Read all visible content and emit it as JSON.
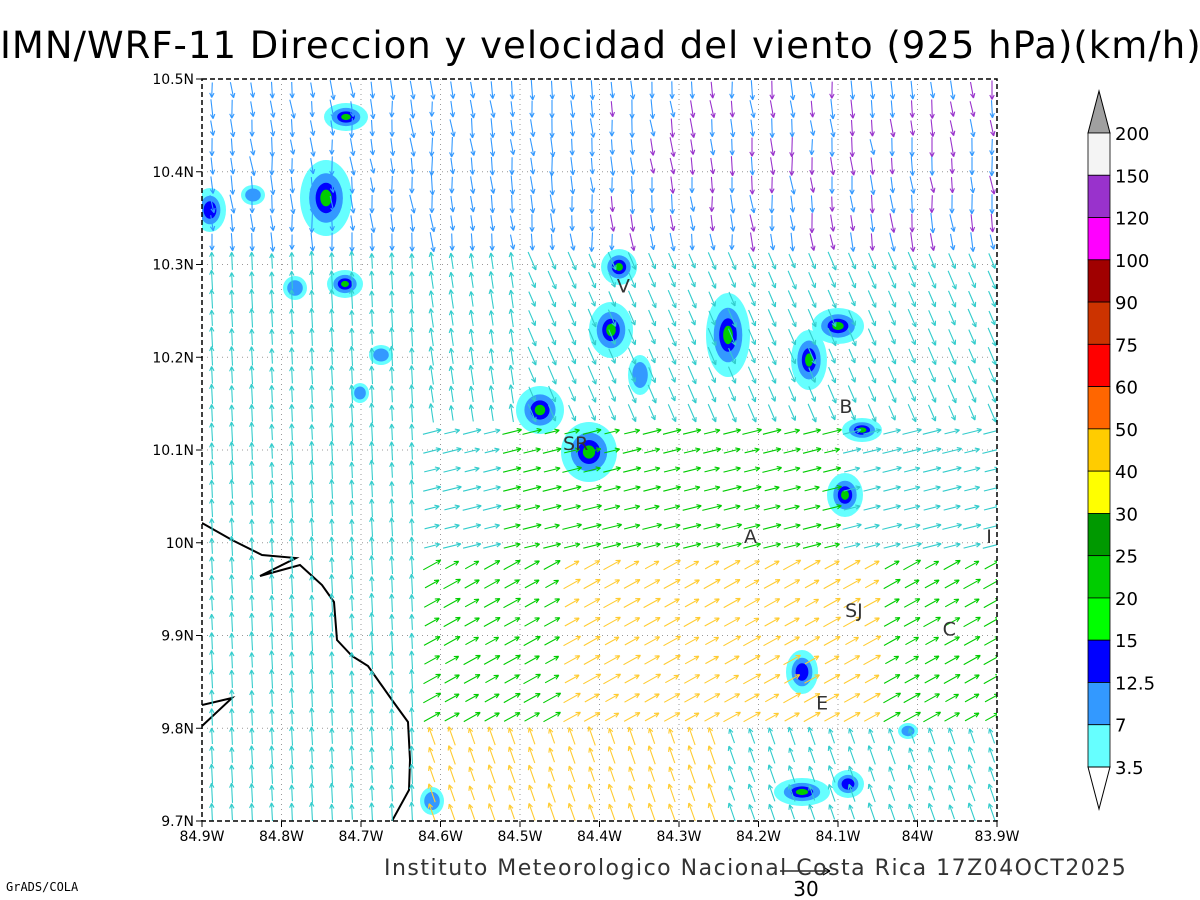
{
  "title": "IMN/WRF-11 Direccion y velocidad del viento (925 hPa)(km/h)",
  "footer": "Instituto Meteorologico Nacional Costa Rica 17Z04OCT2025",
  "software": "GrADS/COLA",
  "map": {
    "lon_range": [
      -84.9,
      -83.9
    ],
    "lat_range": [
      9.7,
      10.5
    ],
    "x_tick_labels": [
      "84.9W",
      "84.8W",
      "84.7W",
      "84.6W",
      "84.5W",
      "84.4W",
      "84.3W",
      "84.2W",
      "84.1W",
      "84W",
      "83.9W"
    ],
    "y_tick_labels": [
      "9.7N",
      "9.8N",
      "9.9N",
      "10N",
      "10.1N",
      "10.2N",
      "10.3N",
      "10.4N",
      "10.5N"
    ],
    "grid": "dotted",
    "city_labels": [
      {
        "label": "V",
        "lon": -84.37,
        "lat": 10.27
      },
      {
        "label": "SR",
        "lon": -84.43,
        "lat": 10.1
      },
      {
        "label": "B",
        "lon": -84.09,
        "lat": 10.14
      },
      {
        "label": "A",
        "lon": -84.21,
        "lat": 10.0
      },
      {
        "label": "I",
        "lon": -83.91,
        "lat": 10.0
      },
      {
        "label": "SJ",
        "lon": -84.08,
        "lat": 9.92
      },
      {
        "label": "C",
        "lon": -83.96,
        "lat": 9.9
      },
      {
        "label": "E",
        "lon": -84.12,
        "lat": 9.82
      }
    ],
    "reference_vector": "30"
  },
  "legend": {
    "levels": [
      "200",
      "150",
      "120",
      "100",
      "90",
      "75",
      "60",
      "50",
      "40",
      "30",
      "25",
      "20",
      "15",
      "12.5",
      "7",
      "3.5"
    ],
    "colors": [
      "#f4f4f4",
      "#9932cc",
      "#ff00ff",
      "#a00000",
      "#cc3300",
      "#ff0000",
      "#ff6600",
      "#ffcc00",
      "#ffff00",
      "#009900",
      "#00cc00",
      "#00ff00",
      "#0000ff",
      "#3399ff",
      "#66ffff"
    ],
    "overflow_high_color": "#a0a0a0"
  }
}
